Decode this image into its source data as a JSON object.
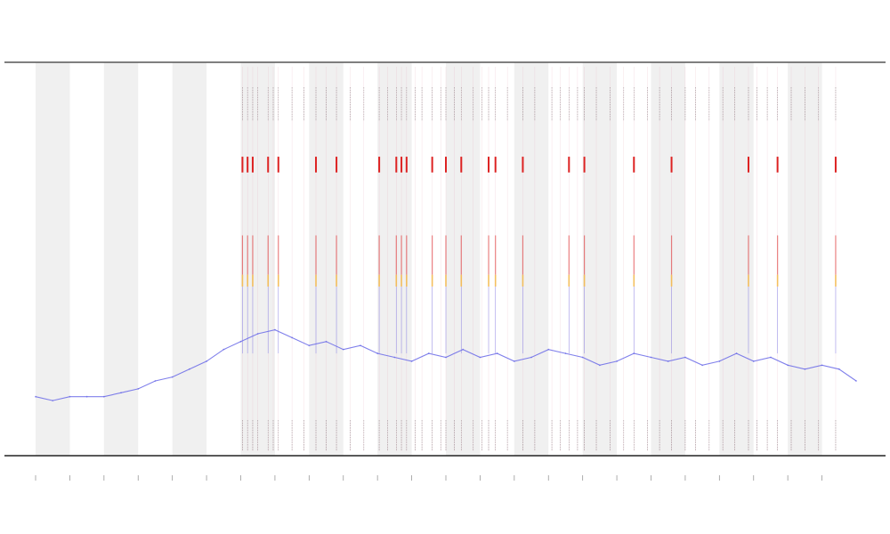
{
  "colors": {
    "band": "#f0f0f0",
    "line": "#6a6ae8",
    "rug": "#555555",
    "peak_red": "#dd2222",
    "peak_orange": "#f2b33a",
    "axis": "#555555"
  },
  "chart_data": {
    "type": "line",
    "title": "",
    "xlabel": "",
    "ylabel": "",
    "grid": false,
    "legend": "none",
    "xlim": [
      0,
      24
    ],
    "ylim": [
      0,
      100
    ],
    "shaded_intervals": [
      [
        0,
        1
      ],
      [
        2,
        3
      ],
      [
        4,
        5
      ],
      [
        6,
        7
      ],
      [
        8,
        9
      ],
      [
        10,
        11
      ],
      [
        12,
        13
      ],
      [
        14,
        15
      ],
      [
        16,
        17
      ],
      [
        18,
        19
      ],
      [
        20,
        21
      ],
      [
        22,
        23
      ]
    ],
    "x_ticks": [
      0,
      1,
      2,
      3,
      4,
      5,
      6,
      7,
      8,
      9,
      10,
      11,
      12,
      13,
      14,
      15,
      16,
      17,
      18,
      19,
      20,
      21,
      22,
      23
    ],
    "series": [
      {
        "x": [
          0,
          0.5,
          1,
          1.5,
          2,
          2.5,
          3,
          3.5,
          4,
          4.5,
          5,
          5.5,
          6,
          6.5,
          7,
          7.5,
          8,
          8.5,
          9,
          9.5,
          10,
          10.5,
          11,
          11.5,
          12,
          12.5,
          13,
          13.5,
          14,
          14.5,
          15,
          15.5,
          16,
          16.5,
          17,
          17.5,
          18,
          18.5,
          19,
          19.5,
          20,
          20.5,
          21,
          21.5,
          22,
          22.5,
          23,
          23.5,
          24
        ],
        "values": [
          15,
          14,
          15,
          15,
          15,
          16,
          17,
          19,
          20,
          22,
          24,
          27,
          29,
          31,
          32,
          30,
          28,
          29,
          27,
          28,
          26,
          25,
          24,
          26,
          25,
          27,
          25,
          26,
          24,
          25,
          27,
          26,
          25,
          23,
          24,
          26,
          25,
          24,
          25,
          23,
          24,
          26,
          24,
          25,
          23,
          22,
          23,
          22,
          19
        ]
      }
    ],
    "peak_events": [
      {
        "x": 6.05,
        "level": 70
      },
      {
        "x": 6.2,
        "level": 70
      },
      {
        "x": 6.35,
        "level": 70
      },
      {
        "x": 6.8,
        "level": 70
      },
      {
        "x": 7.1,
        "level": 70
      },
      {
        "x": 8.2,
        "level": 70
      },
      {
        "x": 8.8,
        "level": 70
      },
      {
        "x": 10.05,
        "level": 70
      },
      {
        "x": 10.55,
        "level": 70
      },
      {
        "x": 10.7,
        "level": 70
      },
      {
        "x": 10.85,
        "level": 70
      },
      {
        "x": 11.6,
        "level": 70
      },
      {
        "x": 12.0,
        "level": 70
      },
      {
        "x": 12.45,
        "level": 70
      },
      {
        "x": 13.25,
        "level": 70
      },
      {
        "x": 13.45,
        "level": 70
      },
      {
        "x": 14.25,
        "level": 70
      },
      {
        "x": 15.6,
        "level": 70
      },
      {
        "x": 16.05,
        "level": 70
      },
      {
        "x": 17.5,
        "level": 70
      },
      {
        "x": 18.6,
        "level": 70
      },
      {
        "x": 20.85,
        "level": 70
      },
      {
        "x": 21.7,
        "level": 70
      },
      {
        "x": 23.4,
        "level": 70
      }
    ],
    "rug_x": [
      6.05,
      6.2,
      6.35,
      6.5,
      6.8,
      6.95,
      7.1,
      7.5,
      7.85,
      8.2,
      8.5,
      8.8,
      9.2,
      9.6,
      10.05,
      10.3,
      10.55,
      10.7,
      10.85,
      11.1,
      11.3,
      11.6,
      11.85,
      12.0,
      12.25,
      12.45,
      12.8,
      13.05,
      13.25,
      13.45,
      13.8,
      14.25,
      14.6,
      15.1,
      15.35,
      15.6,
      15.85,
      16.05,
      16.4,
      16.8,
      17.2,
      17.5,
      17.9,
      18.25,
      18.6,
      19.0,
      19.3,
      19.7,
      20.1,
      20.45,
      20.85,
      21.1,
      21.4,
      21.7,
      22.1,
      22.5,
      22.9,
      23.4
    ]
  }
}
